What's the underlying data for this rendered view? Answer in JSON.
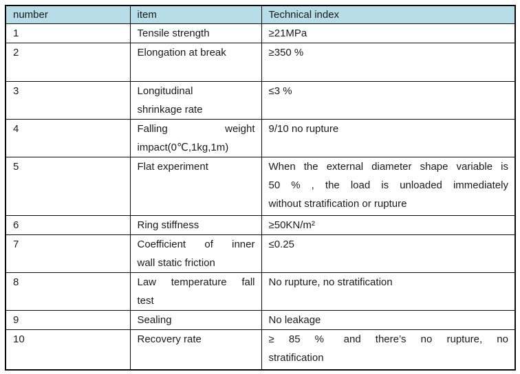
{
  "page": {
    "background": "#ffffff"
  },
  "table": {
    "name": "technical-index-table",
    "header_bg": "#b7dee8",
    "border_color": "#0a0a0a",
    "text_color": "#1a1a1a",
    "columns": [
      "number",
      "item",
      "Technical index"
    ],
    "rows": [
      {
        "number": "1",
        "item_lines": [
          "Tensile strength"
        ],
        "index_lines": [
          "≥21MPa"
        ]
      },
      {
        "number": "2",
        "item_lines": [
          "Elongation at break"
        ],
        "index_lines": [
          "≥350 %"
        ]
      },
      {
        "number": "3",
        "item_lines": [
          "Longitudinal",
          "shrinkage rate"
        ],
        "index_lines": [
          "≤3 %"
        ]
      },
      {
        "number": "4",
        "item_lines": [
          "Falling weight",
          "impact(0℃,1kg,1m)"
        ],
        "index_lines": [
          "9/10 no rupture"
        ]
      },
      {
        "number": "5",
        "item_lines": [
          "Flat experiment"
        ],
        "index_lines": [
          "When the external diameter shape variable is",
          "50 % , the load is unloaded immediately",
          "without stratification or rupture"
        ]
      },
      {
        "number": "6",
        "item_lines": [
          "Ring stiffness"
        ],
        "index_lines": [
          "≥50KN/m²"
        ]
      },
      {
        "number": "7",
        "item_lines": [
          "Coefficient of inner",
          "wall static friction"
        ],
        "index_lines": [
          "≤0.25"
        ]
      },
      {
        "number": "8",
        "item_lines": [
          "Law temperature fall",
          "test"
        ],
        "index_lines": [
          "No rupture, no stratification"
        ]
      },
      {
        "number": "9",
        "item_lines": [
          "Sealing"
        ],
        "index_lines": [
          "No leakage"
        ]
      },
      {
        "number": "10",
        "item_lines": [
          "Recovery rate"
        ],
        "index_lines": [
          "≥ 85 %  and there’s no rupture, no",
          "stratification"
        ]
      }
    ]
  }
}
